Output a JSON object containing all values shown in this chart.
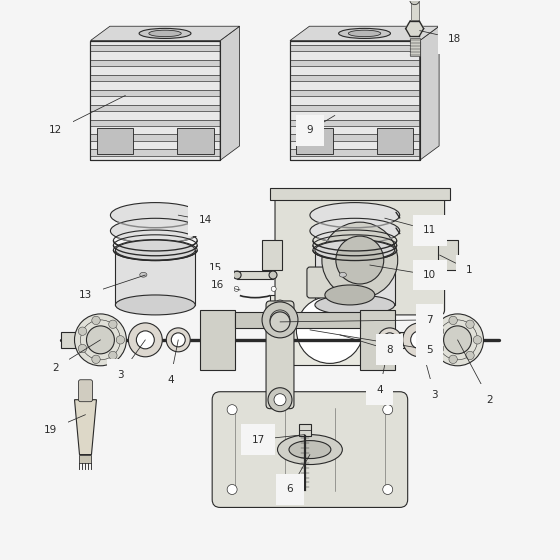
{
  "bg_color": "#f5f5f5",
  "line_color": "#2a2a2a",
  "label_color": "#111111",
  "label_fontsize": 7.5,
  "fig_width": 5.6,
  "fig_height": 5.6,
  "dpi": 100
}
